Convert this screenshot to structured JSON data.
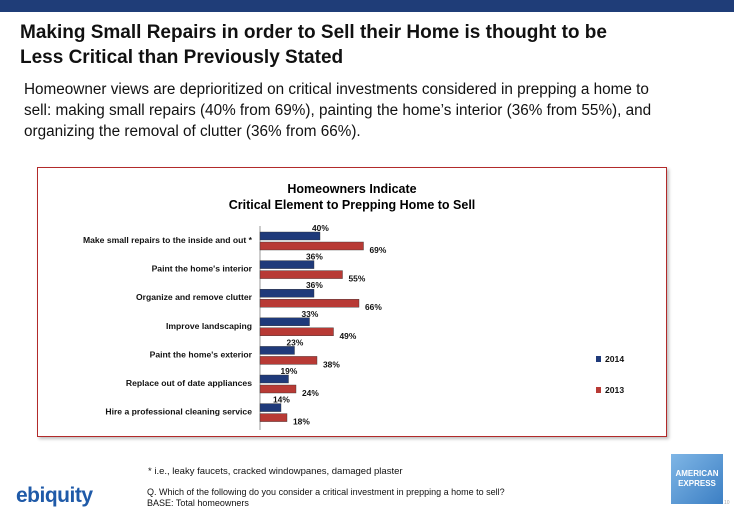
{
  "header": {
    "title_line1": "Making Small Repairs in order to Sell their Home is thought to be",
    "title_line2": "Less Critical than Previously Stated",
    "subtitle_line1": "Homeowner views are deprioritized on critical investments considered in prepping a home to",
    "subtitle_line2": "sell:  making small repairs (40% from 69%), painting the home’s interior (36% from 55%), and",
    "subtitle_line3": "organizing the removal of clutter (36% from 66%)."
  },
  "chart_data": {
    "type": "bar",
    "orientation": "horizontal",
    "title_line1": "Homeowners Indicate",
    "title_line2": "Critical Element to Prepping Home to Sell",
    "categories": [
      "Make small repairs to the inside and out *",
      "Paint the home's interior",
      "Organize and remove clutter",
      "Improve landscaping",
      "Paint the home's exterior",
      "Replace out of date appliances",
      "Hire a professional cleaning service"
    ],
    "series": [
      {
        "name": "2014",
        "values": [
          40,
          36,
          36,
          33,
          23,
          19,
          14
        ],
        "color": "#1f3a7a"
      },
      {
        "name": "2013",
        "values": [
          69,
          55,
          66,
          49,
          38,
          24,
          18
        ],
        "color": "#b83a35"
      }
    ],
    "value_suffix": "%",
    "xlim": [
      0,
      100
    ],
    "legend_position": "right",
    "grid": false
  },
  "footer": {
    "footnote": "* i.e., leaky faucets, cracked windowpanes, damaged plaster",
    "question": "Q. Which of the following do you consider a critical investment in prepping a home to sell?",
    "base": "BASE:  Total homeowners",
    "logo_left": "ebiquity",
    "logo_right_line1": "AMERICAN",
    "logo_right_line2": "EXPRESS",
    "page_number": "10"
  }
}
